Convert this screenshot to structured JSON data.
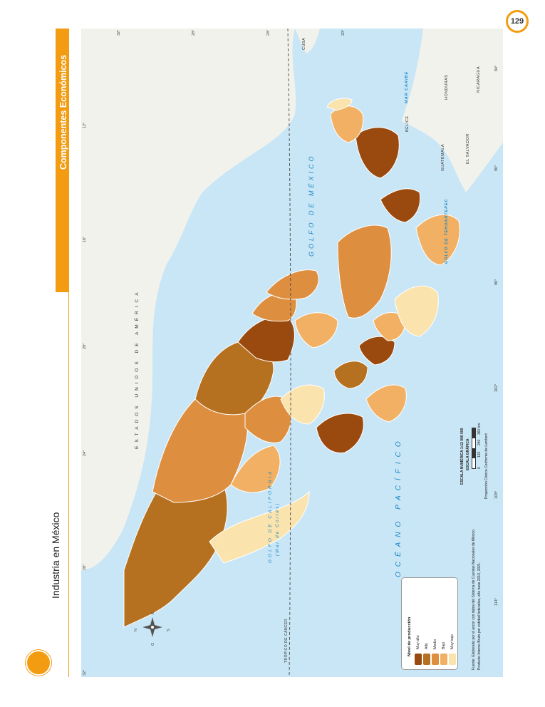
{
  "page": {
    "number": "129"
  },
  "section": {
    "title": "Componentes Económicos"
  },
  "map": {
    "title": "Industria en México",
    "graticule": {
      "lat_left": [
        "32°",
        "28°",
        "24°",
        "20°",
        "16°",
        "12°"
      ],
      "lat_top": [
        "32°",
        "28°",
        "24°",
        "20°"
      ],
      "lon_right": [
        "84°",
        "90°",
        "96°",
        "102°",
        "108°",
        "114°"
      ],
      "lon_left": [
        "120°",
        "114°",
        "108°",
        "102°",
        "96°",
        "90°",
        "84°"
      ]
    },
    "labels": {
      "usa": "ESTADOS UNIDOS DE AMÉRICA",
      "gulf_mexico": "GOLFO DE MÉXICO",
      "pacific": "OCÉANO PACÍFICO",
      "gulf_california": "GOLFO DE CALIFORNIA",
      "mar_cortes": "(Mar de Cortés)",
      "caribbean": "MAR CARIBE",
      "tehuantepec": "GOLFO DE TEHUANTEPEC",
      "tropic": "TRÓPICO DE CÁNCER",
      "cuba": "CUBA",
      "belice": "BELICE",
      "guatemala": "GUATEMALA",
      "honduras": "HONDURAS",
      "el_salvador": "EL SALVADOR",
      "nicaragua": "NICARAGUA",
      "compass_n": "N",
      "compass_s": "S",
      "compass_e": "E",
      "compass_o": "O"
    },
    "legend": {
      "title": "Nivel de producción",
      "items": [
        {
          "label": "Muy alto",
          "color": "#9a4a0f"
        },
        {
          "label": "Alto",
          "color": "#b5711f"
        },
        {
          "label": "Medio",
          "color": "#dd8e3f"
        },
        {
          "label": "Bajo",
          "color": "#f1b063"
        },
        {
          "label": "Muy bajo",
          "color": "#fbe3ad"
        }
      ]
    },
    "scale": {
      "numeric": "ESCALA NUMÉRICA 1:12 000 000",
      "graphic": "ESCALA GRÁFICA",
      "ticks": [
        "0",
        "120",
        "240",
        "360 km"
      ],
      "projection": "Proyección Cónica Conforme de Lambert"
    },
    "source": {
      "line1": "Fuente: Elaborado por el ancor con datos del Sistema de Cuentas Nacionales de México.",
      "line2": "Producto Interno Bruto por entidad federativa, año base 2013, 2021."
    },
    "colors": {
      "ocean": "#c9e6f6",
      "land_foreign": "#f2f2ec",
      "border": "#ffffff",
      "accent": "#f39c12"
    }
  }
}
